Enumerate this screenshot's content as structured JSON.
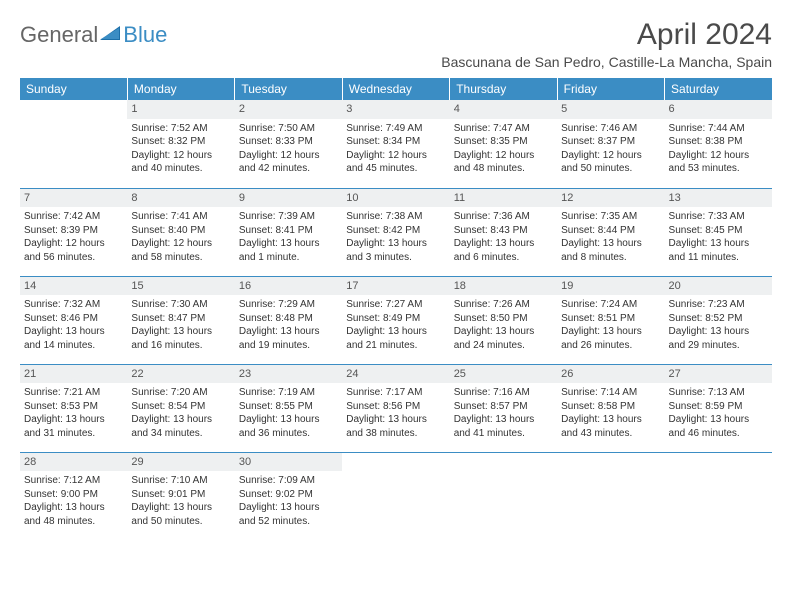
{
  "logo": {
    "textA": "General",
    "textB": "Blue"
  },
  "title": "April 2024",
  "location": "Bascunana de San Pedro, Castille-La Mancha, Spain",
  "colors": {
    "headerBg": "#3b8dc4",
    "headerText": "#ffffff",
    "dayNumBg": "#eef0f1",
    "borderColor": "#3b8dc4",
    "bodyText": "#333333"
  },
  "dayHeaders": [
    "Sunday",
    "Monday",
    "Tuesday",
    "Wednesday",
    "Thursday",
    "Friday",
    "Saturday"
  ],
  "weeks": [
    [
      null,
      {
        "n": "1",
        "sr": "Sunrise: 7:52 AM",
        "ss": "Sunset: 8:32 PM",
        "dl": "Daylight: 12 hours and 40 minutes."
      },
      {
        "n": "2",
        "sr": "Sunrise: 7:50 AM",
        "ss": "Sunset: 8:33 PM",
        "dl": "Daylight: 12 hours and 42 minutes."
      },
      {
        "n": "3",
        "sr": "Sunrise: 7:49 AM",
        "ss": "Sunset: 8:34 PM",
        "dl": "Daylight: 12 hours and 45 minutes."
      },
      {
        "n": "4",
        "sr": "Sunrise: 7:47 AM",
        "ss": "Sunset: 8:35 PM",
        "dl": "Daylight: 12 hours and 48 minutes."
      },
      {
        "n": "5",
        "sr": "Sunrise: 7:46 AM",
        "ss": "Sunset: 8:37 PM",
        "dl": "Daylight: 12 hours and 50 minutes."
      },
      {
        "n": "6",
        "sr": "Sunrise: 7:44 AM",
        "ss": "Sunset: 8:38 PM",
        "dl": "Daylight: 12 hours and 53 minutes."
      }
    ],
    [
      {
        "n": "7",
        "sr": "Sunrise: 7:42 AM",
        "ss": "Sunset: 8:39 PM",
        "dl": "Daylight: 12 hours and 56 minutes."
      },
      {
        "n": "8",
        "sr": "Sunrise: 7:41 AM",
        "ss": "Sunset: 8:40 PM",
        "dl": "Daylight: 12 hours and 58 minutes."
      },
      {
        "n": "9",
        "sr": "Sunrise: 7:39 AM",
        "ss": "Sunset: 8:41 PM",
        "dl": "Daylight: 13 hours and 1 minute."
      },
      {
        "n": "10",
        "sr": "Sunrise: 7:38 AM",
        "ss": "Sunset: 8:42 PM",
        "dl": "Daylight: 13 hours and 3 minutes."
      },
      {
        "n": "11",
        "sr": "Sunrise: 7:36 AM",
        "ss": "Sunset: 8:43 PM",
        "dl": "Daylight: 13 hours and 6 minutes."
      },
      {
        "n": "12",
        "sr": "Sunrise: 7:35 AM",
        "ss": "Sunset: 8:44 PM",
        "dl": "Daylight: 13 hours and 8 minutes."
      },
      {
        "n": "13",
        "sr": "Sunrise: 7:33 AM",
        "ss": "Sunset: 8:45 PM",
        "dl": "Daylight: 13 hours and 11 minutes."
      }
    ],
    [
      {
        "n": "14",
        "sr": "Sunrise: 7:32 AM",
        "ss": "Sunset: 8:46 PM",
        "dl": "Daylight: 13 hours and 14 minutes."
      },
      {
        "n": "15",
        "sr": "Sunrise: 7:30 AM",
        "ss": "Sunset: 8:47 PM",
        "dl": "Daylight: 13 hours and 16 minutes."
      },
      {
        "n": "16",
        "sr": "Sunrise: 7:29 AM",
        "ss": "Sunset: 8:48 PM",
        "dl": "Daylight: 13 hours and 19 minutes."
      },
      {
        "n": "17",
        "sr": "Sunrise: 7:27 AM",
        "ss": "Sunset: 8:49 PM",
        "dl": "Daylight: 13 hours and 21 minutes."
      },
      {
        "n": "18",
        "sr": "Sunrise: 7:26 AM",
        "ss": "Sunset: 8:50 PM",
        "dl": "Daylight: 13 hours and 24 minutes."
      },
      {
        "n": "19",
        "sr": "Sunrise: 7:24 AM",
        "ss": "Sunset: 8:51 PM",
        "dl": "Daylight: 13 hours and 26 minutes."
      },
      {
        "n": "20",
        "sr": "Sunrise: 7:23 AM",
        "ss": "Sunset: 8:52 PM",
        "dl": "Daylight: 13 hours and 29 minutes."
      }
    ],
    [
      {
        "n": "21",
        "sr": "Sunrise: 7:21 AM",
        "ss": "Sunset: 8:53 PM",
        "dl": "Daylight: 13 hours and 31 minutes."
      },
      {
        "n": "22",
        "sr": "Sunrise: 7:20 AM",
        "ss": "Sunset: 8:54 PM",
        "dl": "Daylight: 13 hours and 34 minutes."
      },
      {
        "n": "23",
        "sr": "Sunrise: 7:19 AM",
        "ss": "Sunset: 8:55 PM",
        "dl": "Daylight: 13 hours and 36 minutes."
      },
      {
        "n": "24",
        "sr": "Sunrise: 7:17 AM",
        "ss": "Sunset: 8:56 PM",
        "dl": "Daylight: 13 hours and 38 minutes."
      },
      {
        "n": "25",
        "sr": "Sunrise: 7:16 AM",
        "ss": "Sunset: 8:57 PM",
        "dl": "Daylight: 13 hours and 41 minutes."
      },
      {
        "n": "26",
        "sr": "Sunrise: 7:14 AM",
        "ss": "Sunset: 8:58 PM",
        "dl": "Daylight: 13 hours and 43 minutes."
      },
      {
        "n": "27",
        "sr": "Sunrise: 7:13 AM",
        "ss": "Sunset: 8:59 PM",
        "dl": "Daylight: 13 hours and 46 minutes."
      }
    ],
    [
      {
        "n": "28",
        "sr": "Sunrise: 7:12 AM",
        "ss": "Sunset: 9:00 PM",
        "dl": "Daylight: 13 hours and 48 minutes."
      },
      {
        "n": "29",
        "sr": "Sunrise: 7:10 AM",
        "ss": "Sunset: 9:01 PM",
        "dl": "Daylight: 13 hours and 50 minutes."
      },
      {
        "n": "30",
        "sr": "Sunrise: 7:09 AM",
        "ss": "Sunset: 9:02 PM",
        "dl": "Daylight: 13 hours and 52 minutes."
      },
      null,
      null,
      null,
      null
    ]
  ]
}
